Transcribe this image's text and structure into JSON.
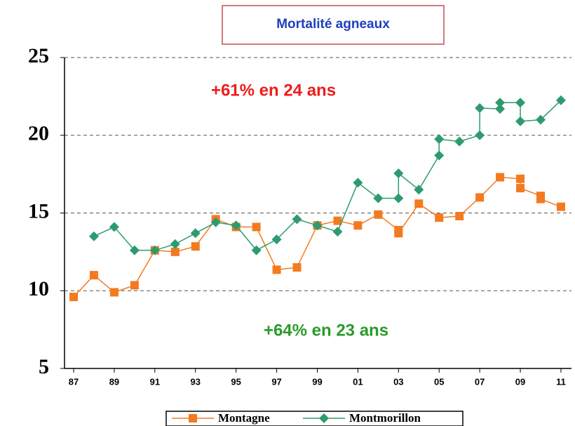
{
  "chart_data": {
    "type": "line",
    "title": "Mortalité agneaux",
    "annotations": [
      {
        "text": "+61% en 24 ans",
        "color": "#ee1c1c"
      },
      {
        "text": "+64% en 23 ans",
        "color": "#2a9a2a"
      }
    ],
    "xlim": [
      1986.55,
      2011.52
    ],
    "ylim": [
      5,
      25
    ],
    "yticks": [
      5,
      10,
      15,
      20,
      25
    ],
    "xticks": [
      {
        "value": 1987,
        "label": "87"
      },
      {
        "value": 1989,
        "label": "89"
      },
      {
        "value": 1991,
        "label": "91"
      },
      {
        "value": 1993,
        "label": "93"
      },
      {
        "value": 1995,
        "label": "95"
      },
      {
        "value": 1997,
        "label": "97"
      },
      {
        "value": 1999,
        "label": "99"
      },
      {
        "value": 2001,
        "label": "01"
      },
      {
        "value": 2003,
        "label": "03"
      },
      {
        "value": 2005,
        "label": "05"
      },
      {
        "value": 2007,
        "label": "07"
      },
      {
        "value": 2009,
        "label": "09"
      },
      {
        "value": 2011,
        "label": "11"
      }
    ],
    "grid": true,
    "series": [
      {
        "name": "Montagne",
        "color": "#f47a20",
        "marker": "square",
        "x": [
          1987,
          1988,
          1989,
          1990,
          1991,
          1992,
          1993,
          1994,
          1995,
          1996,
          1997,
          1998,
          1999,
          2000,
          2001,
          2002,
          2003,
          2003,
          2004,
          2005,
          2006,
          2007,
          2008,
          2009,
          2009,
          2010,
          2010,
          2011
        ],
        "values": [
          9.6,
          11.0,
          9.9,
          10.35,
          12.6,
          12.5,
          12.85,
          14.6,
          14.1,
          14.1,
          11.35,
          11.5,
          14.2,
          14.5,
          14.2,
          14.9,
          13.9,
          13.7,
          15.6,
          14.7,
          14.8,
          16.0,
          17.3,
          17.2,
          16.6,
          16.1,
          15.9,
          15.4
        ]
      },
      {
        "name": "Montmorillon",
        "color": "#2e9b6e",
        "marker": "diamond",
        "x": [
          1988,
          1989,
          1990,
          1991,
          1992,
          1993,
          1994,
          1995,
          1996,
          1997,
          1998,
          1999,
          2000,
          2001,
          2002,
          2003,
          2003,
          2004,
          2005,
          2005,
          2006,
          2007,
          2007,
          2008,
          2008,
          2009,
          2009,
          2010,
          2011
        ],
        "values": [
          13.5,
          14.1,
          12.6,
          12.6,
          13.0,
          13.7,
          14.4,
          14.2,
          12.6,
          13.3,
          14.6,
          14.2,
          13.8,
          16.95,
          15.95,
          15.95,
          17.55,
          16.5,
          18.7,
          19.75,
          19.6,
          20.0,
          21.75,
          21.7,
          22.1,
          22.1,
          20.9,
          21.0,
          22.25
        ]
      }
    ]
  }
}
